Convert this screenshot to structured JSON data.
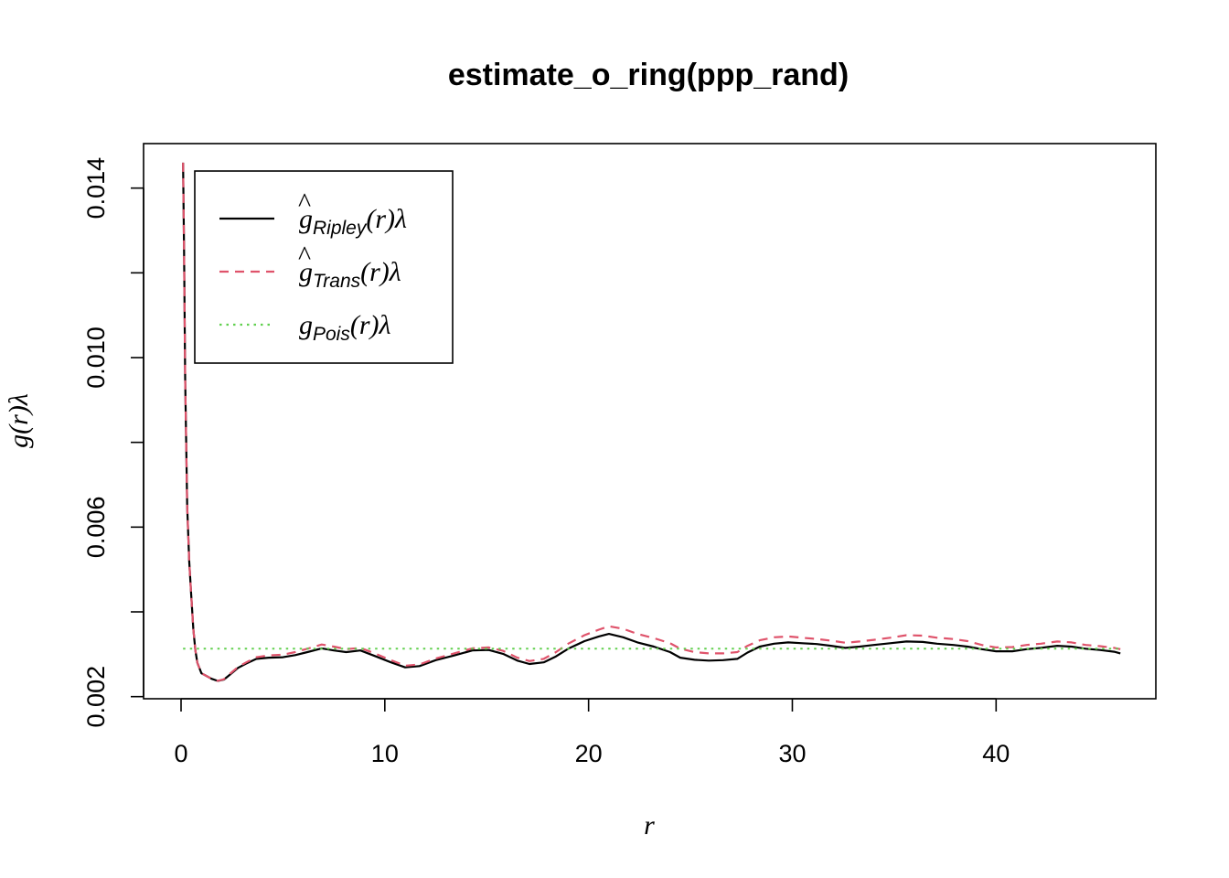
{
  "chart_data": {
    "type": "line",
    "title": "estimate_o_ring(ppp_rand)",
    "xlabel": "r",
    "ylabel": "g(r)λ",
    "xlim": [
      -1.84,
      47.84
    ],
    "ylim": [
      0.00195,
      0.01505
    ],
    "x_ticks": [
      0,
      10,
      20,
      30,
      40
    ],
    "x_tick_labels": [
      "0",
      "10",
      "20",
      "30",
      "40"
    ],
    "y_ticks": [
      0.002,
      0.004,
      0.006,
      0.008,
      0.01,
      0.012,
      0.014
    ],
    "y_tick_labels": [
      "0.002",
      "",
      "0.006",
      "",
      "0.010",
      "",
      "0.014"
    ],
    "grid": false,
    "legend_position": "top-left",
    "legend": [
      {
        "hat": "^",
        "base": "g",
        "sub": "Ripley",
        "tail": "(r)λ",
        "color": "#000000",
        "dash": "solid"
      },
      {
        "hat": "^",
        "base": "g",
        "sub": "Trans",
        "tail": "(r)λ",
        "color": "#DF536B",
        "dash": "dashed"
      },
      {
        "hat": "",
        "base": "g",
        "sub": "Pois",
        "tail": "(r)λ",
        "color": "#61D04F",
        "dash": "dotted"
      }
    ],
    "series": [
      {
        "key": "ripley",
        "color": "#000000",
        "dash": "solid",
        "x": [
          0.1,
          0.15,
          0.2,
          0.3,
          0.4,
          0.5,
          0.6,
          0.7,
          0.8,
          1.0,
          1.2,
          1.5,
          1.8,
          2.1,
          2.4,
          2.8,
          3.2,
          3.7,
          4.3,
          5.0,
          5.6,
          6.2,
          6.9,
          7.5,
          8.1,
          8.8,
          9.5,
          10.3,
          11.0,
          11.7,
          12.5,
          13.4,
          14.3,
          15.1,
          15.8,
          16.5,
          17.1,
          17.8,
          18.4,
          19.0,
          19.8,
          20.5,
          21.0,
          21.7,
          22.4,
          23.2,
          24.0,
          24.5,
          25.2,
          25.9,
          26.6,
          27.3,
          27.8,
          28.4,
          29.1,
          29.8,
          30.5,
          31.2,
          31.9,
          32.6,
          33.3,
          34.0,
          34.8,
          35.6,
          36.4,
          37.1,
          37.9,
          38.6,
          39.3,
          40.0,
          40.8,
          41.5,
          42.2,
          43.0,
          43.7,
          44.4,
          45.1,
          45.8,
          46.1
        ],
        "y": [
          0.0146,
          0.0125,
          0.0095,
          0.0065,
          0.0052,
          0.0044,
          0.0036,
          0.0031,
          0.0028,
          0.00255,
          0.0025,
          0.00242,
          0.00237,
          0.0024,
          0.00252,
          0.00268,
          0.00278,
          0.00289,
          0.00292,
          0.00293,
          0.00298,
          0.00305,
          0.00314,
          0.00309,
          0.00305,
          0.00309,
          0.00296,
          0.00281,
          0.00269,
          0.00272,
          0.00286,
          0.00297,
          0.00309,
          0.0031,
          0.00301,
          0.00285,
          0.00277,
          0.00281,
          0.00295,
          0.00313,
          0.00331,
          0.00342,
          0.00348,
          0.0034,
          0.00328,
          0.00318,
          0.00305,
          0.00292,
          0.00287,
          0.00285,
          0.00286,
          0.00289,
          0.00304,
          0.00318,
          0.00325,
          0.00328,
          0.00326,
          0.00324,
          0.0032,
          0.00315,
          0.00318,
          0.00322,
          0.00326,
          0.0033,
          0.00329,
          0.00325,
          0.00322,
          0.00318,
          0.00312,
          0.00307,
          0.00307,
          0.00312,
          0.00315,
          0.0032,
          0.00318,
          0.00313,
          0.0031,
          0.00306,
          0.00302
        ]
      },
      {
        "key": "trans",
        "color": "#DF536B",
        "dash": "dashed",
        "x": [
          0.1,
          0.15,
          0.2,
          0.3,
          0.4,
          0.5,
          0.6,
          0.7,
          0.8,
          1.0,
          1.2,
          1.5,
          1.8,
          2.1,
          2.4,
          2.8,
          3.2,
          3.7,
          4.3,
          5.0,
          5.6,
          6.2,
          6.9,
          7.5,
          8.1,
          8.8,
          9.5,
          10.3,
          11.0,
          11.7,
          12.5,
          13.4,
          14.3,
          15.1,
          15.8,
          16.5,
          17.1,
          17.8,
          18.4,
          19.0,
          19.8,
          20.5,
          21.0,
          21.7,
          22.4,
          23.2,
          24.0,
          24.5,
          25.2,
          25.9,
          26.6,
          27.3,
          27.8,
          28.4,
          29.1,
          29.8,
          30.5,
          31.2,
          31.9,
          32.6,
          33.3,
          34.0,
          34.8,
          35.6,
          36.4,
          37.1,
          37.9,
          38.6,
          39.3,
          40.0,
          40.8,
          41.5,
          42.2,
          43.0,
          43.7,
          44.4,
          45.1,
          45.8,
          46.1
        ],
        "y": [
          0.0146,
          0.0125,
          0.0095,
          0.0065,
          0.0052,
          0.0044,
          0.0036,
          0.0031,
          0.0028,
          0.00255,
          0.0025,
          0.00242,
          0.00237,
          0.00241,
          0.00254,
          0.0027,
          0.00281,
          0.00293,
          0.00297,
          0.00299,
          0.00305,
          0.00313,
          0.00323,
          0.00318,
          0.00312,
          0.00315,
          0.00302,
          0.00286,
          0.00273,
          0.00276,
          0.0029,
          0.00302,
          0.00314,
          0.00316,
          0.00308,
          0.00292,
          0.00284,
          0.00289,
          0.00305,
          0.00325,
          0.00345,
          0.00358,
          0.00366,
          0.0036,
          0.00348,
          0.00338,
          0.00326,
          0.00313,
          0.00305,
          0.00302,
          0.00302,
          0.00305,
          0.0032,
          0.00333,
          0.0034,
          0.00342,
          0.00339,
          0.00336,
          0.00332,
          0.00327,
          0.0033,
          0.00334,
          0.00339,
          0.00345,
          0.00344,
          0.00339,
          0.00336,
          0.00331,
          0.00322,
          0.00316,
          0.00317,
          0.00322,
          0.00325,
          0.0033,
          0.00328,
          0.00322,
          0.00319,
          0.00315,
          0.00312
        ]
      },
      {
        "key": "pois",
        "color": "#61D04F",
        "dash": "dotted",
        "x": [
          0.1,
          46.1
        ],
        "y": [
          0.00313,
          0.00313
        ]
      }
    ]
  }
}
